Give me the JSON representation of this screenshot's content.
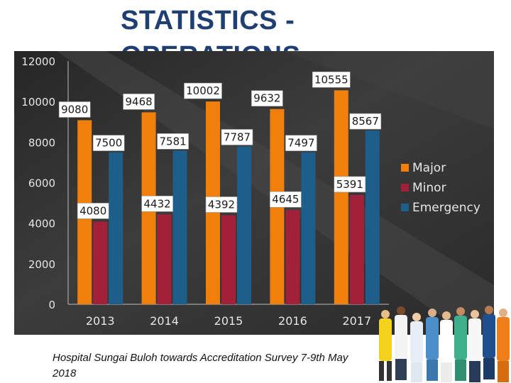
{
  "slide": {
    "title_line1": "STATISTICS -",
    "title_line2": "OPERATIONS",
    "footer": "Hospital Sungai Buloh towards Accreditation Survey 7-9th May 2018"
  },
  "colors": {
    "major": "#f07f0c",
    "minor": "#a3203a",
    "emergency": "#1d5f8a",
    "panel_dark": "#2b2b2b",
    "panel_mid": "#4a4a4a"
  },
  "chart_data": {
    "type": "bar",
    "title": "",
    "xlabel": "",
    "ylabel": "",
    "categories": [
      "2013",
      "2014",
      "2015",
      "2016",
      "2017"
    ],
    "ylim": [
      0,
      12000
    ],
    "yticks": [
      0,
      2000,
      4000,
      6000,
      8000,
      10000,
      12000
    ],
    "grid": false,
    "legend_position": "right",
    "series": [
      {
        "name": "Major",
        "color": "#f07f0c",
        "values": [
          9080,
          9468,
          10002,
          9632,
          10555
        ]
      },
      {
        "name": "Minor",
        "color": "#a3203a",
        "values": [
          4080,
          4432,
          4392,
          4645,
          5391
        ]
      },
      {
        "name": "Emergency",
        "color": "#1d5f8a",
        "values": [
          7500,
          7581,
          7787,
          7497,
          8567
        ]
      }
    ],
    "data_labels": true
  }
}
